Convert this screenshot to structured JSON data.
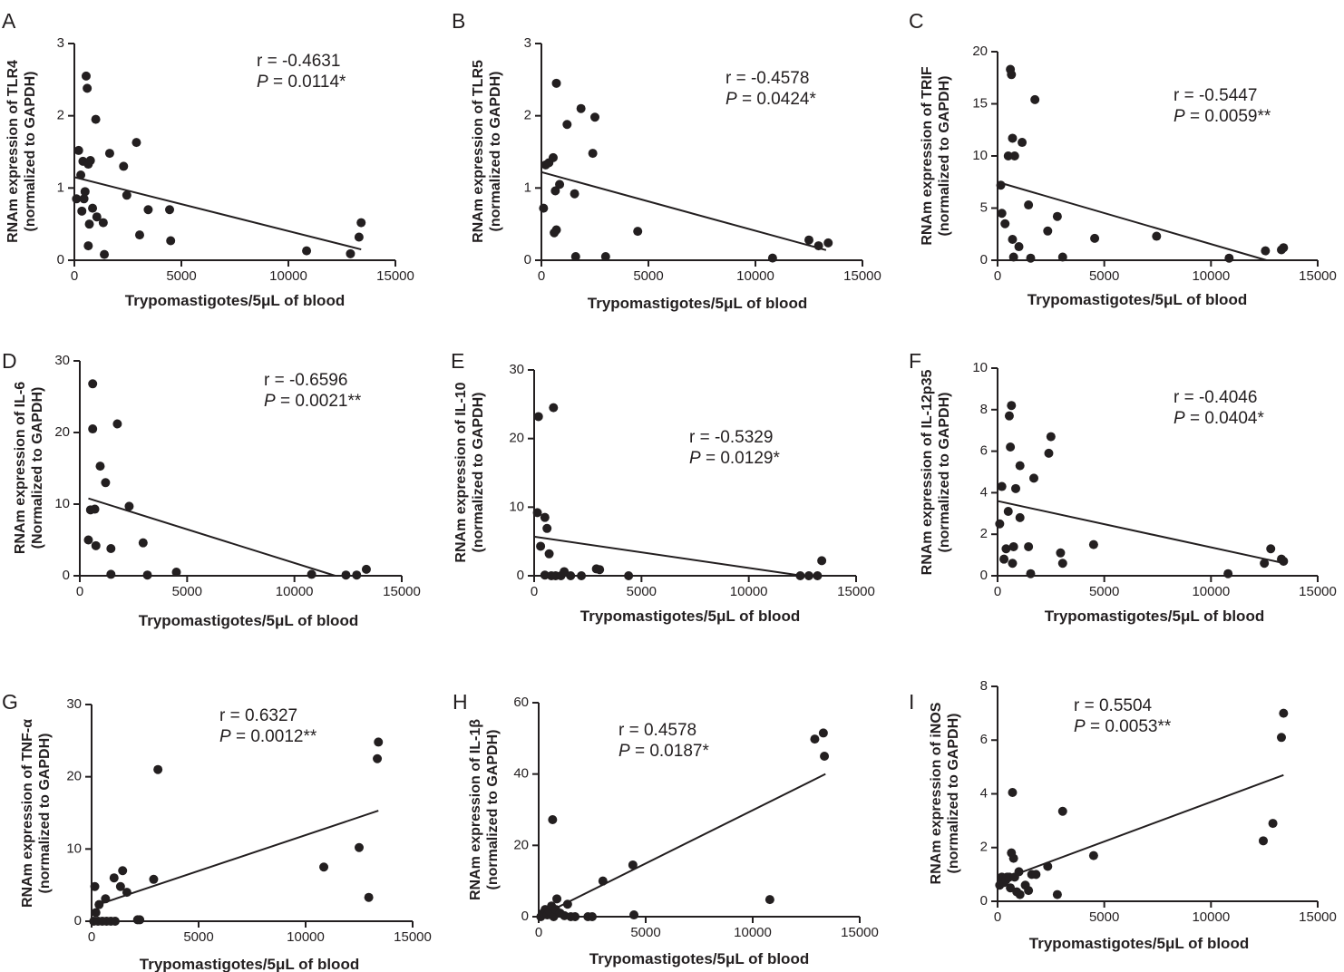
{
  "chart_data": [
    {
      "type": "scatter",
      "panel": "A",
      "xlabel": "Trypomastigotes/5μL of blood",
      "ylabel": [
        "RNAm expression of TLR4",
        "(normalized to GAPDH)"
      ],
      "xlim": [
        0,
        15000
      ],
      "ylim": [
        0,
        3
      ],
      "xticks": [
        0,
        5000,
        10000,
        15000
      ],
      "yticks": [
        0,
        1,
        2,
        3
      ],
      "r_text": "r = -0.4631",
      "p_label": "P",
      "p_value": " = 0.0114*",
      "fit": {
        "x": [
          0,
          13400
        ],
        "y": [
          1.15,
          0.15
        ]
      },
      "points": [
        [
          100,
          0.85
        ],
        [
          200,
          1.52
        ],
        [
          300,
          1.18
        ],
        [
          350,
          0.68
        ],
        [
          400,
          1.37
        ],
        [
          450,
          0.85
        ],
        [
          500,
          0.95
        ],
        [
          550,
          2.55
        ],
        [
          600,
          2.38
        ],
        [
          650,
          1.33
        ],
        [
          700,
          0.5
        ],
        [
          650,
          0.2
        ],
        [
          750,
          1.38
        ],
        [
          850,
          0.72
        ],
        [
          1000,
          1.95
        ],
        [
          1050,
          0.6
        ],
        [
          1350,
          0.52
        ],
        [
          1400,
          0.08
        ],
        [
          1650,
          1.48
        ],
        [
          2300,
          1.3
        ],
        [
          2450,
          0.9
        ],
        [
          2900,
          1.63
        ],
        [
          3050,
          0.35
        ],
        [
          3450,
          0.7
        ],
        [
          4450,
          0.7
        ],
        [
          4500,
          0.27
        ],
        [
          10850,
          0.13
        ],
        [
          12900,
          0.09
        ],
        [
          13300,
          0.32
        ],
        [
          13400,
          0.52
        ]
      ]
    },
    {
      "type": "scatter",
      "panel": "B",
      "xlabel": "Trypomastigotes/5μL of blood",
      "ylabel": [
        "RNAm expression of TLR5",
        "(normalized to GAPDH)"
      ],
      "xlim": [
        0,
        15000
      ],
      "ylim": [
        0,
        3
      ],
      "xticks": [
        0,
        5000,
        10000,
        15000
      ],
      "yticks": [
        0,
        1,
        2,
        3
      ],
      "r_text": "r = -0.4578",
      "p_label": "P",
      "p_value": " = 0.0424*",
      "fit": {
        "x": [
          0,
          13300
        ],
        "y": [
          1.22,
          0.14
        ]
      },
      "points": [
        [
          100,
          0.72
        ],
        [
          200,
          1.32
        ],
        [
          350,
          1.35
        ],
        [
          550,
          1.42
        ],
        [
          600,
          0.38
        ],
        [
          650,
          0.96
        ],
        [
          700,
          2.45
        ],
        [
          700,
          0.42
        ],
        [
          850,
          1.05
        ],
        [
          1200,
          1.88
        ],
        [
          1550,
          0.92
        ],
        [
          1600,
          0.05
        ],
        [
          1850,
          2.1
        ],
        [
          2400,
          1.48
        ],
        [
          2500,
          1.98
        ],
        [
          3000,
          0.05
        ],
        [
          4500,
          0.4
        ],
        [
          10800,
          0.03
        ],
        [
          12500,
          0.28
        ],
        [
          12950,
          0.2
        ],
        [
          13400,
          0.24
        ]
      ]
    },
    {
      "type": "scatter",
      "panel": "C",
      "xlabel": "Trypomastigotes/5μL of blood",
      "ylabel": [
        "RNAm expression of TRIF",
        "(normalized to GAPDH)"
      ],
      "xlim": [
        0,
        15000
      ],
      "ylim": [
        0,
        20
      ],
      "xticks": [
        0,
        5000,
        10000,
        15000
      ],
      "yticks": [
        0,
        5,
        10,
        15,
        20
      ],
      "r_text": "r = -0.5447",
      "p_label": "P",
      "p_value": " = 0.0059**",
      "fit": {
        "x": [
          0,
          12600
        ],
        "y": [
          7.5,
          0
        ]
      },
      "points": [
        [
          150,
          7.2
        ],
        [
          200,
          4.5
        ],
        [
          350,
          3.5
        ],
        [
          500,
          10
        ],
        [
          600,
          18.3
        ],
        [
          650,
          17.8
        ],
        [
          700,
          11.7
        ],
        [
          700,
          2
        ],
        [
          800,
          10
        ],
        [
          750,
          0.3
        ],
        [
          1000,
          1.3
        ],
        [
          1150,
          11.3
        ],
        [
          1450,
          5.3
        ],
        [
          1550,
          0.2
        ],
        [
          1750,
          15.4
        ],
        [
          2350,
          2.8
        ],
        [
          2800,
          4.2
        ],
        [
          3050,
          0.3
        ],
        [
          4550,
          2.1
        ],
        [
          7450,
          2.3
        ],
        [
          10850,
          0.2
        ],
        [
          12550,
          0.9
        ],
        [
          13300,
          1
        ],
        [
          13400,
          1.2
        ]
      ]
    },
    {
      "type": "scatter",
      "panel": "D",
      "xlabel": "Trypomastigotes/5μL of blood",
      "ylabel": [
        "RNAm expression of IL-6",
        "(Normalized to GAPDH)"
      ],
      "xlim": [
        0,
        15000
      ],
      "ylim": [
        0,
        30
      ],
      "xticks": [
        0,
        5000,
        10000,
        15000
      ],
      "yticks": [
        0,
        10,
        20,
        30
      ],
      "r_text": "r = -0.6596",
      "p_label": "P",
      "p_value": " = 0.0021**",
      "fit": {
        "x": [
          400,
          11900
        ],
        "y": [
          10.8,
          0
        ]
      },
      "points": [
        [
          400,
          5
        ],
        [
          500,
          9.2
        ],
        [
          600,
          20.5
        ],
        [
          600,
          26.8
        ],
        [
          700,
          9.3
        ],
        [
          750,
          4.2
        ],
        [
          950,
          15.3
        ],
        [
          1200,
          13
        ],
        [
          1450,
          3.8
        ],
        [
          1450,
          0.2
        ],
        [
          1750,
          21.2
        ],
        [
          2300,
          9.7
        ],
        [
          2950,
          4.6
        ],
        [
          3150,
          0.1
        ],
        [
          4500,
          0.5
        ],
        [
          10800,
          0.2
        ],
        [
          12400,
          0.1
        ],
        [
          12900,
          0.1
        ],
        [
          13350,
          0.9
        ]
      ]
    },
    {
      "type": "scatter",
      "panel": "E",
      "xlabel": "Trypomastigotes/5μL of blood",
      "ylabel": [
        "RNAm expression of IL-10",
        "(normalized to GAPDH)"
      ],
      "xlim": [
        0,
        15000
      ],
      "ylim": [
        0,
        30
      ],
      "xticks": [
        0,
        5000,
        10000,
        15000
      ],
      "yticks": [
        0,
        10,
        20,
        30
      ],
      "r_text": "r = -0.5329",
      "p_label": "P",
      "p_value": " = 0.0129*",
      "fit": {
        "x": [
          0,
          12500
        ],
        "y": [
          5.7,
          0
        ]
      },
      "points": [
        [
          150,
          9.2
        ],
        [
          200,
          23.2
        ],
        [
          300,
          4.3
        ],
        [
          500,
          8.5
        ],
        [
          600,
          6.9
        ],
        [
          500,
          0.1
        ],
        [
          700,
          3.2
        ],
        [
          800,
          0
        ],
        [
          900,
          24.5
        ],
        [
          1000,
          0
        ],
        [
          1250,
          0
        ],
        [
          1400,
          0.6
        ],
        [
          1700,
          0
        ],
        [
          2200,
          0
        ],
        [
          2900,
          1
        ],
        [
          3050,
          0.9
        ],
        [
          4400,
          0
        ],
        [
          12400,
          0
        ],
        [
          12800,
          0
        ],
        [
          13200,
          0
        ],
        [
          13400,
          2.2
        ]
      ]
    },
    {
      "type": "scatter",
      "panel": "F",
      "xlabel": "Trypomastigotes/5μL of blood",
      "ylabel": [
        "RNAm expression of IL-12p35",
        "(normalized to GAPDH)"
      ],
      "xlim": [
        0,
        15000
      ],
      "ylim": [
        0,
        10
      ],
      "xticks": [
        0,
        5000,
        10000,
        15000
      ],
      "yticks": [
        0,
        2,
        4,
        6,
        8,
        10
      ],
      "r_text": "r = -0.4046",
      "p_label": "P",
      "p_value": " = 0.0404*",
      "fit": {
        "x": [
          0,
          13450
        ],
        "y": [
          3.6,
          0.6
        ]
      },
      "points": [
        [
          100,
          2.5
        ],
        [
          200,
          4.3
        ],
        [
          300,
          0.8
        ],
        [
          400,
          1.3
        ],
        [
          500,
          3.1
        ],
        [
          550,
          7.7
        ],
        [
          600,
          6.2
        ],
        [
          650,
          8.2
        ],
        [
          700,
          0.6
        ],
        [
          750,
          1.4
        ],
        [
          850,
          4.2
        ],
        [
          1050,
          5.3
        ],
        [
          1050,
          2.8
        ],
        [
          1450,
          1.4
        ],
        [
          1550,
          0.1
        ],
        [
          1700,
          4.7
        ],
        [
          2400,
          5.9
        ],
        [
          2500,
          6.7
        ],
        [
          2950,
          1.1
        ],
        [
          3050,
          0.6
        ],
        [
          4500,
          1.5
        ],
        [
          10800,
          0.1
        ],
        [
          12500,
          0.6
        ],
        [
          12800,
          1.3
        ],
        [
          13300,
          0.8
        ],
        [
          13400,
          0.7
        ]
      ]
    },
    {
      "type": "scatter",
      "panel": "G",
      "xlabel": "Trypomastigotes/5μL of blood",
      "ylabel": [
        "RNAm expression of TNF-α",
        "(normalized to GAPDH)"
      ],
      "xlim": [
        0,
        15000
      ],
      "ylim": [
        0,
        30
      ],
      "xticks": [
        0,
        5000,
        10000,
        15000
      ],
      "yticks": [
        0,
        10,
        20,
        30
      ],
      "r_text": "r = 0.6327",
      "p_label": "P",
      "p_value": " = 0.0012**",
      "fit": {
        "x": [
          200,
          13400
        ],
        "y": [
          2.2,
          15.3
        ]
      },
      "points": [
        [
          100,
          0
        ],
        [
          150,
          4.8
        ],
        [
          200,
          1.2
        ],
        [
          300,
          0
        ],
        [
          350,
          2.3
        ],
        [
          500,
          0
        ],
        [
          650,
          3.1
        ],
        [
          700,
          0
        ],
        [
          900,
          0
        ],
        [
          1050,
          6
        ],
        [
          1100,
          0
        ],
        [
          1350,
          4.8
        ],
        [
          1450,
          7
        ],
        [
          1650,
          4
        ],
        [
          2150,
          0.2
        ],
        [
          2250,
          0.2
        ],
        [
          2900,
          5.8
        ],
        [
          3100,
          21
        ],
        [
          10850,
          7.5
        ],
        [
          12500,
          10.2
        ],
        [
          12950,
          3.3
        ],
        [
          13350,
          22.5
        ],
        [
          13400,
          24.8
        ]
      ]
    },
    {
      "type": "scatter",
      "panel": "H",
      "xlabel": "Trypomastigotes/5μL of blood",
      "ylabel": [
        "RNAm expression of IL-1β",
        "(normalized to GAPDH)"
      ],
      "xlim": [
        0,
        15000
      ],
      "ylim": [
        0,
        60
      ],
      "xticks": [
        0,
        5000,
        10000,
        15000
      ],
      "yticks": [
        0,
        20,
        40,
        60
      ],
      "r_text": "r = 0.4578",
      "p_label": "P",
      "p_value": " = 0.0187*",
      "fit": {
        "x": [
          0,
          13400
        ],
        "y": [
          0,
          40
        ]
      },
      "points": [
        [
          100,
          0
        ],
        [
          200,
          1
        ],
        [
          300,
          2
        ],
        [
          400,
          0.5
        ],
        [
          500,
          1.5
        ],
        [
          600,
          3
        ],
        [
          700,
          0
        ],
        [
          650,
          27.2
        ],
        [
          800,
          2
        ],
        [
          850,
          5
        ],
        [
          1000,
          1
        ],
        [
          1200,
          0.3
        ],
        [
          1350,
          3.5
        ],
        [
          1500,
          0
        ],
        [
          1700,
          0
        ],
        [
          2300,
          0
        ],
        [
          2500,
          0
        ],
        [
          3000,
          10
        ],
        [
          4400,
          14.5
        ],
        [
          4450,
          0.5
        ],
        [
          10800,
          4.8
        ],
        [
          12900,
          49.8
        ],
        [
          13300,
          51.5
        ],
        [
          13350,
          45
        ]
      ]
    },
    {
      "type": "scatter",
      "panel": "I",
      "xlabel": "Trypomastigotes/5μL of blood",
      "ylabel": [
        "RNAm expression of iNOS",
        "(normalized to GAPDH)"
      ],
      "xlim": [
        0,
        15000
      ],
      "ylim": [
        0,
        8
      ],
      "xticks": [
        0,
        5000,
        10000,
        15000
      ],
      "yticks": [
        0,
        2,
        4,
        6,
        8
      ],
      "r_text": "r = 0.5504",
      "p_label": "P",
      "p_value": " = 0.0053**",
      "fit": {
        "x": [
          0,
          13400
        ],
        "y": [
          0.75,
          4.7
        ]
      },
      "points": [
        [
          100,
          0.6
        ],
        [
          200,
          0.9
        ],
        [
          300,
          0.7
        ],
        [
          400,
          0.8
        ],
        [
          450,
          0.9
        ],
        [
          550,
          0.9
        ],
        [
          600,
          0.5
        ],
        [
          650,
          1.8
        ],
        [
          700,
          4.05
        ],
        [
          750,
          1.6
        ],
        [
          800,
          0.9
        ],
        [
          900,
          0.35
        ],
        [
          1000,
          1.1
        ],
        [
          1050,
          0.25
        ],
        [
          1300,
          0.6
        ],
        [
          1450,
          0.4
        ],
        [
          1600,
          1
        ],
        [
          1800,
          1
        ],
        [
          2350,
          1.3
        ],
        [
          2800,
          0.25
        ],
        [
          3050,
          3.35
        ],
        [
          4500,
          1.7
        ],
        [
          12450,
          2.25
        ],
        [
          12900,
          2.9
        ],
        [
          13300,
          6.1
        ],
        [
          13400,
          7
        ]
      ]
    }
  ]
}
